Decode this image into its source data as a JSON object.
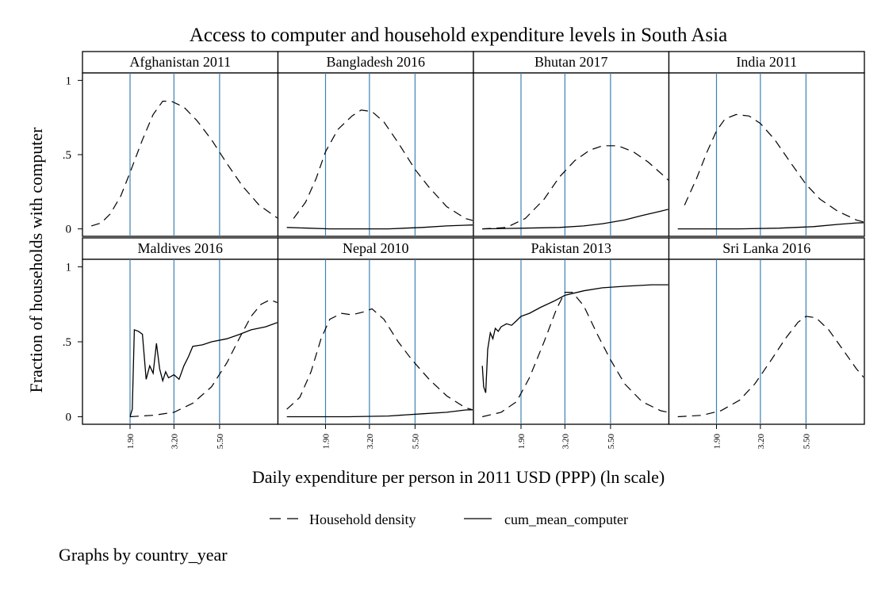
{
  "chart_data": {
    "type": "line",
    "title": "Access to computer and household expenditure levels in South Asia",
    "xlabel": "Daily expenditure per person in 2011 USD (PPP) (ln scale)",
    "ylabel": "Fraction of households with computer",
    "note": "Graphs by country_year",
    "x_scale": "log",
    "x_range": [
      1.08,
      11.0
    ],
    "ylim": [
      -0.05,
      1.05
    ],
    "y_ticks": [
      {
        "value": 0,
        "label": "0"
      },
      {
        "value": 0.5,
        "label": ".5"
      },
      {
        "value": 1,
        "label": "1"
      }
    ],
    "x_ticks": [
      {
        "value": 1.9,
        "label": "1.90"
      },
      {
        "value": 3.2,
        "label": "3.20"
      },
      {
        "value": 5.5,
        "label": "5.50"
      }
    ],
    "reference_lines_x": [
      1.9,
      3.2,
      5.5
    ],
    "reference_line_color": "#3d82b3",
    "legend": {
      "position": "bottom",
      "entries": [
        {
          "label": "Household density",
          "style": "dashed"
        },
        {
          "label": "cum_mean_computer",
          "style": "solid"
        }
      ]
    },
    "panels": [
      {
        "title": "Afghanistan 2011",
        "density": [
          [
            1.2,
            0.02
          ],
          [
            1.35,
            0.04
          ],
          [
            1.5,
            0.1
          ],
          [
            1.7,
            0.22
          ],
          [
            1.9,
            0.38
          ],
          [
            2.2,
            0.6
          ],
          [
            2.5,
            0.77
          ],
          [
            2.8,
            0.86
          ],
          [
            3.1,
            0.86
          ],
          [
            3.6,
            0.82
          ],
          [
            4.2,
            0.73
          ],
          [
            5.0,
            0.6
          ],
          [
            6.0,
            0.44
          ],
          [
            7.2,
            0.29
          ],
          [
            8.8,
            0.16
          ],
          [
            11,
            0.07
          ],
          [
            14,
            0.03
          ],
          [
            18,
            0.01
          ],
          [
            24,
            0.0
          ],
          [
            28,
            0.0
          ]
        ],
        "cum_mean": []
      },
      {
        "title": "Bangladesh 2016",
        "density": [
          [
            1.3,
            0.07
          ],
          [
            1.5,
            0.18
          ],
          [
            1.7,
            0.34
          ],
          [
            1.9,
            0.52
          ],
          [
            2.2,
            0.67
          ],
          [
            2.6,
            0.76
          ],
          [
            2.9,
            0.8
          ],
          [
            3.3,
            0.79
          ],
          [
            3.8,
            0.72
          ],
          [
            4.5,
            0.58
          ],
          [
            5.5,
            0.4
          ],
          [
            6.5,
            0.28
          ],
          [
            8,
            0.15
          ],
          [
            10,
            0.07
          ],
          [
            13,
            0.03
          ],
          [
            17,
            0.01
          ],
          [
            24,
            0.0
          ]
        ],
        "cum_mean": [
          [
            1.2,
            0.01
          ],
          [
            2,
            0.0
          ],
          [
            4,
            0.0
          ],
          [
            6,
            0.01
          ],
          [
            8,
            0.02
          ],
          [
            10,
            0.025
          ],
          [
            13,
            0.03
          ],
          [
            18,
            0.03
          ],
          [
            24,
            0.03
          ]
        ]
      },
      {
        "title": "Bhutan 2017",
        "density": [
          [
            1.2,
            0.0
          ],
          [
            1.6,
            0.01
          ],
          [
            2.0,
            0.07
          ],
          [
            2.5,
            0.2
          ],
          [
            3.0,
            0.35
          ],
          [
            3.6,
            0.46
          ],
          [
            4.3,
            0.53
          ],
          [
            5.0,
            0.56
          ],
          [
            6.0,
            0.56
          ],
          [
            7.2,
            0.52
          ],
          [
            8.6,
            0.45
          ],
          [
            10.5,
            0.35
          ],
          [
            13,
            0.23
          ],
          [
            16,
            0.12
          ],
          [
            19,
            0.04
          ],
          [
            21,
            0.01
          ]
        ],
        "cum_mean": [
          [
            1.2,
            0.0
          ],
          [
            2,
            0.005
          ],
          [
            3,
            0.01
          ],
          [
            4,
            0.02
          ],
          [
            5,
            0.035
          ],
          [
            6.5,
            0.06
          ],
          [
            8,
            0.09
          ],
          [
            10,
            0.12
          ],
          [
            12.5,
            0.15
          ],
          [
            15,
            0.17
          ],
          [
            18,
            0.175
          ],
          [
            22,
            0.18
          ],
          [
            24,
            0.18
          ]
        ]
      },
      {
        "title": "India 2011",
        "density": [
          [
            1.3,
            0.16
          ],
          [
            1.5,
            0.34
          ],
          [
            1.7,
            0.52
          ],
          [
            1.9,
            0.66
          ],
          [
            2.1,
            0.74
          ],
          [
            2.4,
            0.77
          ],
          [
            2.8,
            0.76
          ],
          [
            3.2,
            0.71
          ],
          [
            3.8,
            0.6
          ],
          [
            4.5,
            0.46
          ],
          [
            5.5,
            0.3
          ],
          [
            6.5,
            0.2
          ],
          [
            8,
            0.12
          ],
          [
            10,
            0.06
          ],
          [
            13,
            0.02
          ],
          [
            17,
            0.01
          ],
          [
            24,
            0.0
          ]
        ],
        "cum_mean": [
          [
            1.2,
            0.0
          ],
          [
            2.5,
            0.0
          ],
          [
            4,
            0.005
          ],
          [
            6,
            0.015
          ],
          [
            8,
            0.03
          ],
          [
            10,
            0.04
          ],
          [
            13,
            0.045
          ],
          [
            17,
            0.05
          ],
          [
            24,
            0.05
          ]
        ]
      },
      {
        "title": "Maldives 2016",
        "density": [
          [
            1.9,
            0.0
          ],
          [
            2.5,
            0.01
          ],
          [
            3.2,
            0.03
          ],
          [
            4.0,
            0.09
          ],
          [
            5.0,
            0.2
          ],
          [
            6.0,
            0.36
          ],
          [
            7.0,
            0.53
          ],
          [
            8.0,
            0.67
          ],
          [
            9.0,
            0.75
          ],
          [
            10.0,
            0.78
          ],
          [
            11.5,
            0.75
          ],
          [
            13,
            0.62
          ],
          [
            15,
            0.42
          ],
          [
            17,
            0.22
          ],
          [
            19,
            0.1
          ],
          [
            21,
            0.04
          ],
          [
            23,
            0.03
          ]
        ],
        "cum_mean": [
          [
            1.9,
            0.0
          ],
          [
            1.95,
            0.05
          ],
          [
            2.0,
            0.58
          ],
          [
            2.1,
            0.57
          ],
          [
            2.2,
            0.55
          ],
          [
            2.3,
            0.25
          ],
          [
            2.4,
            0.34
          ],
          [
            2.5,
            0.29
          ],
          [
            2.6,
            0.49
          ],
          [
            2.7,
            0.32
          ],
          [
            2.8,
            0.24
          ],
          [
            2.9,
            0.3
          ],
          [
            3.0,
            0.26
          ],
          [
            3.2,
            0.28
          ],
          [
            3.4,
            0.25
          ],
          [
            3.6,
            0.34
          ],
          [
            3.8,
            0.4
          ],
          [
            4.0,
            0.47
          ],
          [
            4.5,
            0.48
          ],
          [
            5.0,
            0.5
          ],
          [
            6.0,
            0.52
          ],
          [
            7.0,
            0.55
          ],
          [
            8.0,
            0.58
          ],
          [
            9.5,
            0.6
          ],
          [
            11,
            0.63
          ],
          [
            13,
            0.66
          ],
          [
            15,
            0.68
          ],
          [
            18,
            0.69
          ],
          [
            21,
            0.69
          ],
          [
            24,
            0.69
          ]
        ]
      },
      {
        "title": "Nepal 2010",
        "density": [
          [
            1.2,
            0.05
          ],
          [
            1.4,
            0.13
          ],
          [
            1.6,
            0.3
          ],
          [
            1.8,
            0.52
          ],
          [
            2.0,
            0.65
          ],
          [
            2.3,
            0.69
          ],
          [
            2.6,
            0.68
          ],
          [
            3.0,
            0.7
          ],
          [
            3.3,
            0.72
          ],
          [
            3.8,
            0.65
          ],
          [
            4.5,
            0.5
          ],
          [
            5.3,
            0.38
          ],
          [
            6.5,
            0.25
          ],
          [
            8,
            0.14
          ],
          [
            10,
            0.06
          ],
          [
            13,
            0.02
          ],
          [
            17,
            0.0
          ],
          [
            24,
            0.0
          ]
        ],
        "cum_mean": [
          [
            1.2,
            0.0
          ],
          [
            2.5,
            0.0
          ],
          [
            4,
            0.005
          ],
          [
            6,
            0.02
          ],
          [
            8,
            0.03
          ],
          [
            10,
            0.045
          ],
          [
            13,
            0.05
          ],
          [
            17,
            0.05
          ],
          [
            24,
            0.05
          ]
        ]
      },
      {
        "title": "Pakistan 2013",
        "density": [
          [
            1.2,
            0.0
          ],
          [
            1.5,
            0.03
          ],
          [
            1.8,
            0.1
          ],
          [
            2.1,
            0.26
          ],
          [
            2.5,
            0.5
          ],
          [
            2.9,
            0.72
          ],
          [
            3.2,
            0.83
          ],
          [
            3.5,
            0.83
          ],
          [
            4.0,
            0.74
          ],
          [
            4.7,
            0.55
          ],
          [
            5.5,
            0.38
          ],
          [
            6.5,
            0.22
          ],
          [
            8,
            0.1
          ],
          [
            10,
            0.04
          ],
          [
            13,
            0.01
          ],
          [
            17,
            0.0
          ],
          [
            24,
            0.0
          ]
        ],
        "cum_mean": [
          [
            1.2,
            0.34
          ],
          [
            1.22,
            0.2
          ],
          [
            1.25,
            0.16
          ],
          [
            1.28,
            0.45
          ],
          [
            1.32,
            0.56
          ],
          [
            1.36,
            0.52
          ],
          [
            1.4,
            0.59
          ],
          [
            1.45,
            0.57
          ],
          [
            1.5,
            0.6
          ],
          [
            1.6,
            0.62
          ],
          [
            1.7,
            0.61
          ],
          [
            1.8,
            0.64
          ],
          [
            1.9,
            0.67
          ],
          [
            2.1,
            0.69
          ],
          [
            2.4,
            0.73
          ],
          [
            2.8,
            0.77
          ],
          [
            3.2,
            0.81
          ],
          [
            4,
            0.84
          ],
          [
            5,
            0.86
          ],
          [
            6.5,
            0.87
          ],
          [
            9,
            0.88
          ],
          [
            13,
            0.88
          ],
          [
            18,
            0.88
          ],
          [
            24,
            0.88
          ]
        ]
      },
      {
        "title": "Sri Lanka 2016",
        "density": [
          [
            1.2,
            0.0
          ],
          [
            1.6,
            0.01
          ],
          [
            2.0,
            0.04
          ],
          [
            2.5,
            0.11
          ],
          [
            3.0,
            0.22
          ],
          [
            3.6,
            0.37
          ],
          [
            4.3,
            0.52
          ],
          [
            5.0,
            0.63
          ],
          [
            5.5,
            0.67
          ],
          [
            6.2,
            0.66
          ],
          [
            7.2,
            0.58
          ],
          [
            8.5,
            0.45
          ],
          [
            10,
            0.32
          ],
          [
            12,
            0.2
          ],
          [
            14.5,
            0.1
          ],
          [
            17.5,
            0.05
          ],
          [
            21,
            0.02
          ]
        ],
        "cum_mean": []
      }
    ]
  }
}
